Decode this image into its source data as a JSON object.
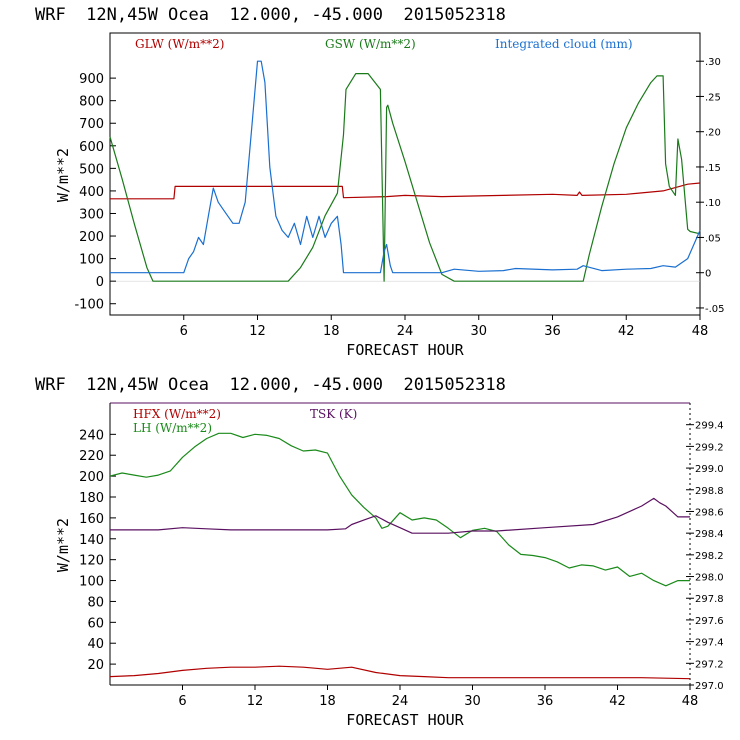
{
  "chart_data": [
    {
      "type": "line",
      "header": "WRF  12N,45W Ocea  12.000, -45.000  2015052318",
      "xlabel": "FORECAST HOUR",
      "ylabel": "W/m**2",
      "xlim": [
        0,
        48
      ],
      "ylim": [
        -150,
        1100
      ],
      "y2lim": [
        -0.06,
        0.34
      ],
      "x_ticks": [
        "6",
        "12",
        "18",
        "24",
        "30",
        "36",
        "42",
        "48"
      ],
      "y_ticks": [
        "900",
        "800",
        "700",
        "600",
        "500",
        "400",
        "300",
        "200",
        "100",
        "0",
        "-100"
      ],
      "y2_ticks": [
        ".30",
        ".25",
        ".20",
        ".15",
        ".10",
        ".05",
        "0",
        "-.05"
      ],
      "series": [
        {
          "name": "GLW (W/m**2)",
          "axis": "left",
          "color": "#b00000",
          "x": [
            0,
            5.2,
            5.3,
            10,
            12,
            18.9,
            19,
            22.5,
            24,
            27,
            30,
            36,
            38,
            38.2,
            38.4,
            42,
            45,
            47,
            48
          ],
          "values": [
            365,
            365,
            420,
            420,
            420,
            420,
            370,
            375,
            380,
            375,
            378,
            385,
            380,
            395,
            380,
            385,
            400,
            430,
            435
          ]
        },
        {
          "name": "GSW (W/m**2)",
          "axis": "left",
          "color": "#1a7a1a",
          "x": [
            0,
            1,
            2,
            3,
            3.5,
            14.5,
            15.5,
            16.5,
            17.5,
            18.5,
            19,
            19.2,
            20,
            21,
            22,
            22.3,
            22.5,
            22.6,
            23,
            24,
            25,
            26,
            27,
            28,
            38.5,
            39,
            40,
            41,
            42,
            43,
            44,
            44.5,
            45,
            45.2,
            45.5,
            46,
            46.2,
            46.5,
            47,
            47.2,
            48
          ],
          "values": [
            640,
            450,
            250,
            60,
            0,
            0,
            60,
            150,
            290,
            390,
            650,
            850,
            920,
            920,
            850,
            0,
            770,
            780,
            700,
            530,
            350,
            170,
            30,
            0,
            0,
            120,
            330,
            520,
            680,
            790,
            880,
            910,
            910,
            520,
            420,
            380,
            630,
            540,
            230,
            220,
            210
          ]
        },
        {
          "name": "Integrated cloud (mm)",
          "axis": "right",
          "color": "#1a6fd0",
          "x": [
            0,
            6,
            6.4,
            6.8,
            7.2,
            7.6,
            8,
            8.4,
            8.8,
            9.2,
            9.6,
            10,
            10.5,
            11,
            11.5,
            12,
            12.3,
            12.6,
            13,
            13.5,
            14,
            14.5,
            15,
            15.5,
            16,
            16.5,
            17,
            17.5,
            18,
            18.5,
            18.8,
            19,
            22,
            22.3,
            22.5,
            22.8,
            23,
            27,
            28,
            30,
            32,
            33,
            36,
            38,
            38.5,
            40,
            42,
            44,
            45,
            46,
            47,
            48
          ],
          "values": [
            0,
            0,
            0.02,
            0.03,
            0.05,
            0.04,
            0.08,
            0.12,
            0.1,
            0.09,
            0.08,
            0.07,
            0.07,
            0.1,
            0.2,
            0.3,
            0.3,
            0.27,
            0.15,
            0.08,
            0.06,
            0.05,
            0.07,
            0.04,
            0.08,
            0.05,
            0.08,
            0.05,
            0.07,
            0.08,
            0.04,
            0,
            0,
            0.03,
            0.04,
            0.01,
            0,
            0,
            0.005,
            0.002,
            0.003,
            0.006,
            0.004,
            0.005,
            0.01,
            0.003,
            0.005,
            0.006,
            0.01,
            0.008,
            0.02,
            0.06
          ]
        }
      ]
    },
    {
      "type": "line",
      "header": "WRF  12N,45W Ocea  12.000, -45.000  2015052318",
      "xlabel": "FORECAST HOUR",
      "ylabel": "W/m**2",
      "xlim": [
        0,
        48
      ],
      "ylim": [
        0,
        270
      ],
      "y2lim": [
        297.0,
        299.6
      ],
      "x_ticks": [
        "6",
        "12",
        "18",
        "24",
        "30",
        "36",
        "42",
        "48"
      ],
      "y_ticks": [
        "240",
        "220",
        "200",
        "180",
        "160",
        "140",
        "120",
        "100",
        "80",
        "60",
        "40",
        "20"
      ],
      "y2_ticks": [
        "299.4",
        "299.2",
        "299.0",
        "298.8",
        "298.6",
        "298.4",
        "298.2",
        "298.0",
        "297.8",
        "297.6",
        "297.4",
        "297.2",
        "297.0"
      ],
      "series": [
        {
          "name": "HFX (W/m**2)",
          "axis": "left",
          "color": "#b00000",
          "x": [
            0,
            2,
            4,
            6,
            8,
            10,
            12,
            14,
            16,
            18,
            20,
            22,
            24,
            26,
            28,
            30,
            32,
            36,
            40,
            44,
            48
          ],
          "values": [
            8,
            9,
            11,
            14,
            16,
            17,
            17,
            18,
            17,
            15,
            17,
            12,
            9,
            8,
            7,
            7,
            7,
            7,
            7,
            7,
            6
          ]
        },
        {
          "name": "LH (W/m**2)",
          "axis": "left",
          "color": "#1a8a1a",
          "x": [
            0,
            1,
            2,
            3,
            4,
            5,
            6,
            7,
            8,
            9,
            10,
            11,
            12,
            13,
            14,
            15,
            16,
            17,
            18,
            19,
            20,
            21,
            22,
            22.5,
            23,
            24,
            25,
            26,
            27,
            28,
            29,
            30,
            31,
            32,
            33,
            34,
            35,
            36,
            37,
            38,
            39,
            40,
            41,
            42,
            43,
            44,
            45,
            46,
            47,
            48
          ],
          "values": [
            200,
            203,
            201,
            199,
            201,
            205,
            218,
            228,
            236,
            241,
            241,
            237,
            240,
            239,
            236,
            229,
            224,
            225,
            222,
            200,
            182,
            170,
            160,
            150,
            152,
            165,
            158,
            160,
            158,
            150,
            141,
            148,
            150,
            147,
            134,
            125,
            124,
            122,
            118,
            112,
            115,
            114,
            110,
            113,
            104,
            107,
            100,
            95,
            100,
            100
          ]
        },
        {
          "name": "TSK (K)",
          "axis": "right",
          "color": "#5a1060",
          "x": [
            0,
            2,
            4,
            6,
            8,
            10,
            12,
            14,
            16,
            18,
            19.5,
            20,
            21,
            22,
            23,
            24,
            25,
            26,
            28,
            30,
            32,
            36,
            40,
            42,
            44,
            45,
            45.5,
            46,
            47,
            48
          ],
          "values": [
            298.43,
            298.43,
            298.43,
            298.45,
            298.44,
            298.43,
            298.43,
            298.43,
            298.43,
            298.43,
            298.44,
            298.48,
            298.52,
            298.56,
            298.5,
            298.45,
            298.4,
            298.4,
            298.4,
            298.42,
            298.42,
            298.45,
            298.48,
            298.55,
            298.65,
            298.72,
            298.68,
            298.65,
            298.55,
            298.55
          ]
        }
      ]
    }
  ]
}
